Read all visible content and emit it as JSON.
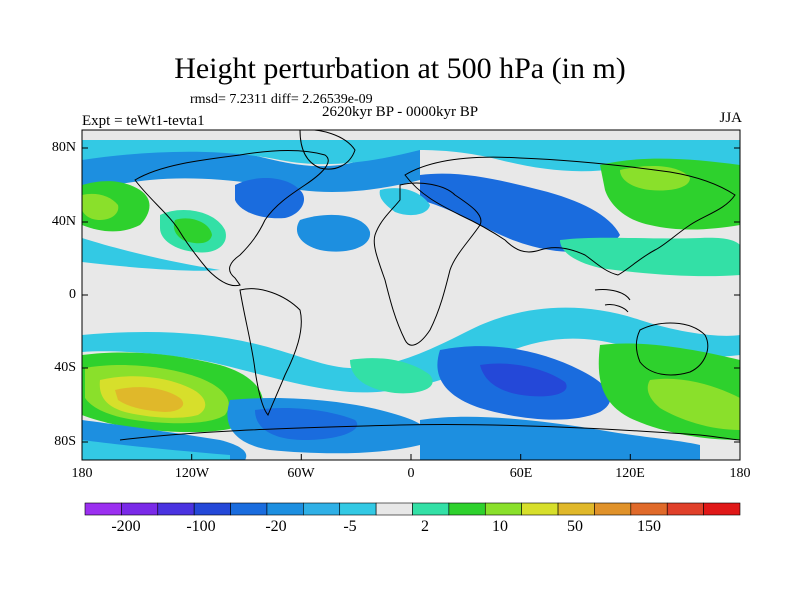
{
  "header": {
    "title": "Height perturbation at 500 hPa (in m)",
    "stats": "rmsd= 7.2311 diff= 2.26539e-09",
    "period": "2620kyr BP - 0000kyr BP",
    "experiment": "Expt = teWt1-tevta1",
    "season": "JJA"
  },
  "map": {
    "lat_ticks": [
      "80N",
      "40N",
      "0",
      "40S",
      "80S"
    ],
    "lon_ticks": [
      "180",
      "120W",
      "60W",
      "0",
      "60E",
      "120E",
      "180"
    ],
    "land_outline_color": "#000000",
    "neutral_color": "#e8e8e8"
  },
  "colorbar": {
    "colors": [
      "#9b2ff0",
      "#7a2ae8",
      "#4a33e0",
      "#2448d8",
      "#1a6cde",
      "#1d8fe0",
      "#2fb0e6",
      "#33c9e4",
      "#e8e8e8",
      "#33e0a6",
      "#2ed12d",
      "#8ae02b",
      "#d7df2b",
      "#e0b82a",
      "#e0922a",
      "#e06a2a",
      "#e0402a",
      "#e01818"
    ],
    "labels": [
      "-200",
      "-100",
      "-20",
      "-5",
      "2",
      "10",
      "50",
      "150"
    ]
  }
}
